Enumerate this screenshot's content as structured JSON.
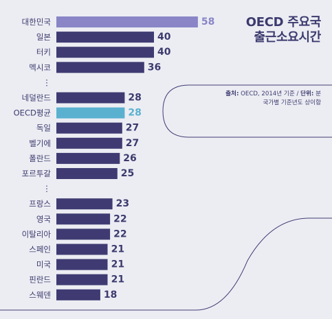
{
  "chart_data": {
    "type": "bar",
    "orientation": "horizontal",
    "title_lines": [
      "OECD 주요국",
      "출근소요시간"
    ],
    "note": {
      "source_label": "출처:",
      "source_text": "OECD, 2014년 기준 /",
      "unit_label": "단위:",
      "unit_text": "분",
      "line2": "국가별 기준년도 상이함"
    },
    "ellipsis": "⋮",
    "colors": {
      "default": "#3f3b72",
      "highlight_korea": "#8985c6",
      "highlight_oecd": "#5ab1cf",
      "label_default": "#3c3a6e",
      "label_korea": "#8985c6",
      "label_oecd": "#5ab1cf",
      "background": "#ecedf3",
      "curve": "#3f3b72"
    },
    "groups": [
      {
        "bars": [
          {
            "category": "대한민국",
            "value": 58,
            "highlight": "korea"
          },
          {
            "category": "일본",
            "value": 40
          },
          {
            "category": "터키",
            "value": 40
          },
          {
            "category": "멕시코",
            "value": 36
          }
        ]
      },
      {
        "bars": [
          {
            "category": "네덜란드",
            "value": 28
          },
          {
            "category": "OECD평균",
            "value": 28,
            "highlight": "oecd"
          },
          {
            "category": "독일",
            "value": 27
          },
          {
            "category": "벨기에",
            "value": 27
          },
          {
            "category": "폴란드",
            "value": 26
          },
          {
            "category": "포르투갈",
            "value": 25
          }
        ]
      },
      {
        "bars": [
          {
            "category": "프랑스",
            "value": 23
          },
          {
            "category": "영국",
            "value": 22
          },
          {
            "category": "이탈리아",
            "value": 22
          },
          {
            "category": "스페인",
            "value": 21
          },
          {
            "category": "미국",
            "value": 21
          },
          {
            "category": "핀란드",
            "value": 21
          },
          {
            "category": "스웨덴",
            "value": 18
          }
        ]
      }
    ]
  }
}
